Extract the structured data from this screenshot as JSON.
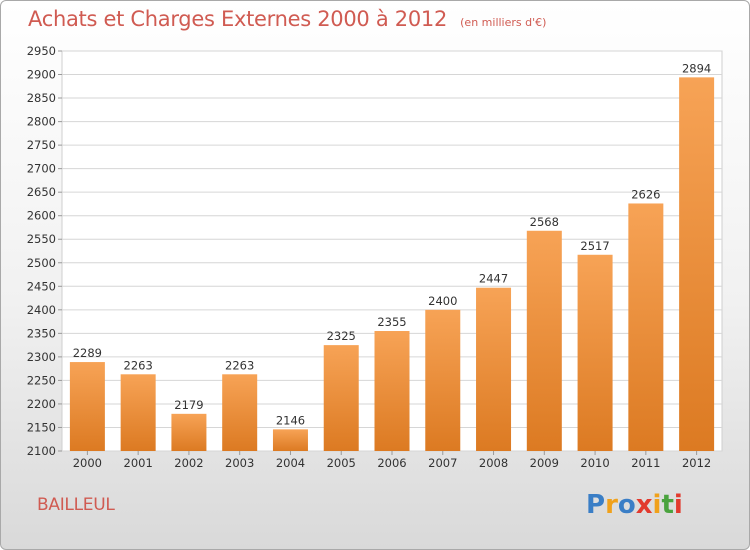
{
  "header": {
    "title": "Achats et Charges Externes 2000 à 2012",
    "subtitle": "(en milliers d'€)"
  },
  "footer": {
    "commune": "BAILLEUL",
    "logo_text": "Proxiti",
    "logo_colors": [
      "#3a7ec6",
      "#f0a11b",
      "#3a7ec6",
      "#e23a2e",
      "#f0a11b",
      "#4aa33e",
      "#e23a2e"
    ]
  },
  "chart_data": {
    "type": "bar",
    "categories": [
      "2000",
      "2001",
      "2002",
      "2003",
      "2004",
      "2005",
      "2006",
      "2007",
      "2008",
      "2009",
      "2010",
      "2011",
      "2012"
    ],
    "values": [
      2289,
      2263,
      2179,
      2263,
      2146,
      2325,
      2355,
      2400,
      2447,
      2568,
      2517,
      2626,
      2894
    ],
    "ylim": [
      2100,
      2950
    ],
    "yticks": [
      2100,
      2150,
      2200,
      2250,
      2300,
      2350,
      2400,
      2450,
      2500,
      2550,
      2600,
      2650,
      2700,
      2750,
      2800,
      2850,
      2900,
      2950
    ],
    "grid": true,
    "colors": {
      "bar_light": "#f7a356",
      "bar_dark": "#dc7a22",
      "grid": "#d6d6d6",
      "axis_text": "#333333"
    }
  }
}
